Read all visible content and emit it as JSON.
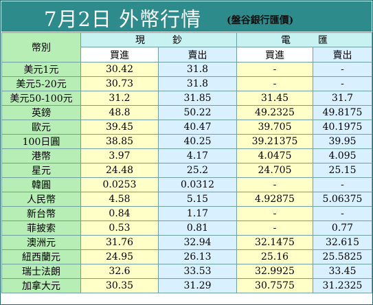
{
  "title": "7月2日 外幣行情",
  "subtitle": "(盤谷銀行匯價)",
  "header": {
    "currency_label": "幣別",
    "cash_label": "現鈔",
    "remit_label": "電匯",
    "buy_label": "買進",
    "sell_label": "賣出"
  },
  "rates": [
    {
      "currency": "美元1元",
      "cash_buy": "30.42",
      "cash_sell": "31.8",
      "remit_buy": "-",
      "remit_sell": "-"
    },
    {
      "currency": "美元5-20元",
      "cash_buy": "30.73",
      "cash_sell": "31.8",
      "remit_buy": "-",
      "remit_sell": "-"
    },
    {
      "currency": "美元50-100元",
      "cash_buy": "31.2",
      "cash_sell": "31.85",
      "remit_buy": "31.45",
      "remit_sell": "31.7"
    },
    {
      "currency": "英鎊",
      "cash_buy": "48.8",
      "cash_sell": "50.22",
      "remit_buy": "49.2325",
      "remit_sell": "49.8175"
    },
    {
      "currency": "歐元",
      "cash_buy": "39.45",
      "cash_sell": "40.47",
      "remit_buy": "39.705",
      "remit_sell": "40.1975"
    },
    {
      "currency": "100日圓",
      "cash_buy": "38.85",
      "cash_sell": "40.25",
      "remit_buy": "39.21375",
      "remit_sell": "39.95"
    },
    {
      "currency": "港幣",
      "cash_buy": "3.97",
      "cash_sell": "4.17",
      "remit_buy": "4.0475",
      "remit_sell": "4.095"
    },
    {
      "currency": "星元",
      "cash_buy": "24.48",
      "cash_sell": "25.2",
      "remit_buy": "24.705",
      "remit_sell": "25.15"
    },
    {
      "currency": "韓圓",
      "cash_buy": "0.0253",
      "cash_sell": "0.0312",
      "remit_buy": "-",
      "remit_sell": "-"
    },
    {
      "currency": "人民幣",
      "cash_buy": "4.58",
      "cash_sell": "5.15",
      "remit_buy": "4.92875",
      "remit_sell": "5.06375"
    },
    {
      "currency": "新台幣",
      "cash_buy": "0.84",
      "cash_sell": "1.17",
      "remit_buy": "-",
      "remit_sell": "-"
    },
    {
      "currency": "菲披索",
      "cash_buy": "0.53",
      "cash_sell": "0.81",
      "remit_buy": "-",
      "remit_sell": "0.77"
    },
    {
      "currency": "澳洲元",
      "cash_buy": "31.76",
      "cash_sell": "32.94",
      "remit_buy": "32.1475",
      "remit_sell": "32.615"
    },
    {
      "currency": "紐西蘭元",
      "cash_buy": "24.95",
      "cash_sell": "26.13",
      "remit_buy": "25.16",
      "remit_sell": "25.5825"
    },
    {
      "currency": "瑞士法朗",
      "cash_buy": "32.6",
      "cash_sell": "33.53",
      "remit_buy": "32.9925",
      "remit_sell": "33.45"
    },
    {
      "currency": "加拿大元",
      "cash_buy": "30.35",
      "cash_sell": "31.29",
      "remit_buy": "30.7575",
      "remit_sell": "31.2325"
    }
  ]
}
